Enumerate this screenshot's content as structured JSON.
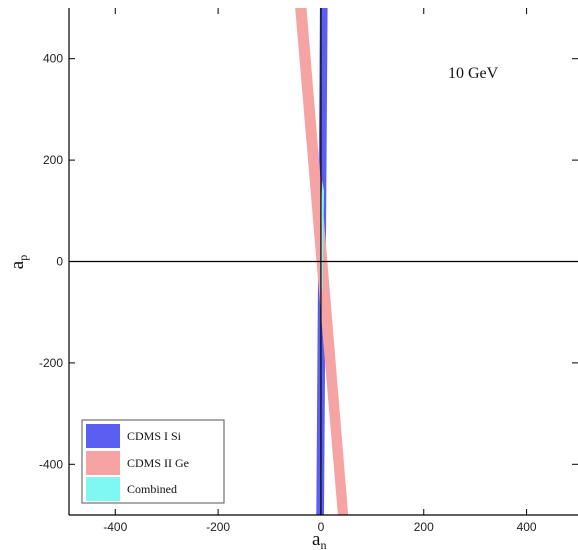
{
  "chart_data": {
    "type": "area",
    "annotation": "10   GeV",
    "xlabel_main": "a",
    "xlabel_sub": "n",
    "ylabel_main": "a",
    "ylabel_sub": "p",
    "xlim": [
      -490,
      500
    ],
    "ylim": [
      -500,
      500
    ],
    "xticks": [
      -400,
      -200,
      0,
      200,
      400
    ],
    "yticks": [
      -400,
      -200,
      0,
      200,
      400
    ],
    "xtick_labels": [
      "-400",
      "-200",
      "0",
      "200",
      "400"
    ],
    "ytick_labels": [
      "-400",
      "-200",
      "0",
      "200",
      "400"
    ],
    "zero_lines": true,
    "legend_position": "bottom-left",
    "series": [
      {
        "name": "CDMS I  Si",
        "color": "#5a5ff2",
        "polygon": [
          [
            -2,
            500
          ],
          [
            13,
            500
          ],
          [
            6,
            -500
          ],
          [
            -9,
            -500
          ]
        ]
      },
      {
        "name": "CDMS II  Ge",
        "color": "#f5a3a3",
        "polygon": [
          [
            -50,
            500
          ],
          [
            -28,
            500
          ],
          [
            53,
            -500
          ],
          [
            33,
            -500
          ]
        ]
      },
      {
        "name": "Combined",
        "color": "#7ff7f2",
        "polygon": [
          [
            2,
            160
          ],
          [
            6,
            140
          ],
          [
            3,
            -60
          ],
          [
            -1,
            -40
          ]
        ]
      }
    ]
  }
}
